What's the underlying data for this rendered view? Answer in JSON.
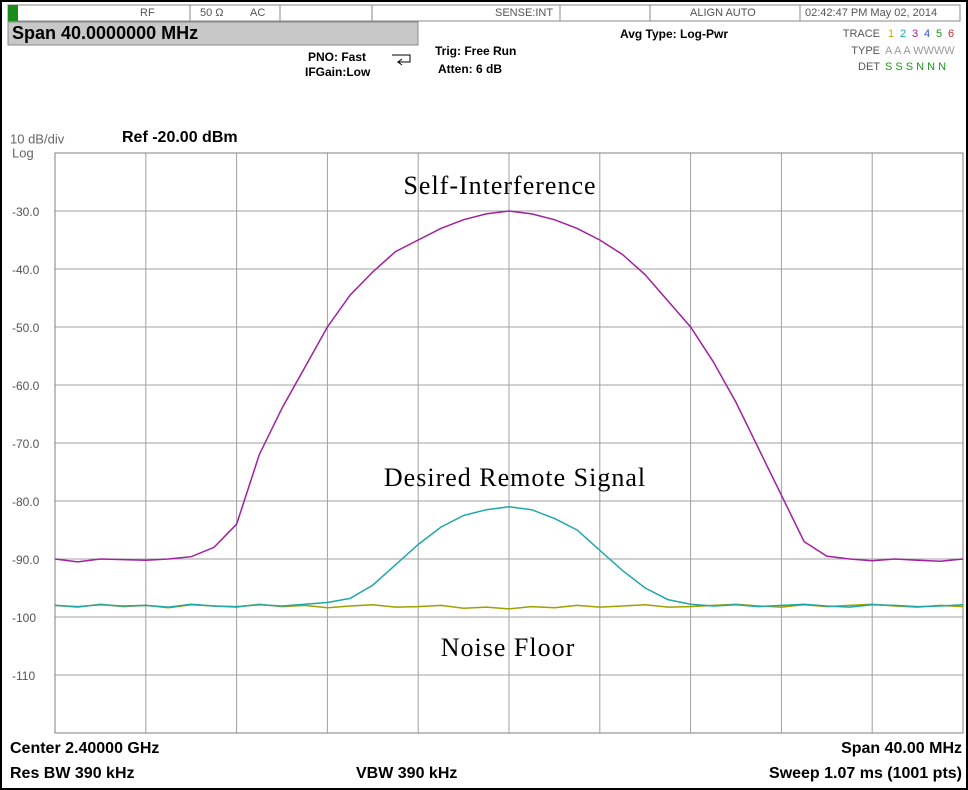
{
  "status": {
    "rf": "RF",
    "impedance": "50 Ω",
    "coupling": "AC",
    "sense": "SENSE:INT",
    "align": "ALIGN AUTO",
    "datetime": "02:42:47 PM May 02, 2014",
    "span": "Span 40.0000000 MHz",
    "pno": "PNO: Fast",
    "ifgain": "IFGain:Low",
    "trig": "Trig: Free Run",
    "atten": "Atten: 6 dB",
    "avg": "Avg Type: Log-Pwr",
    "trace_label": "TRACE",
    "trace_numbers": [
      "1",
      "2",
      "3",
      "4",
      "5",
      "6"
    ],
    "type_label": "TYPE",
    "type_value": "A A A WWWW",
    "det_label": "DET",
    "det_value": "S S S N N N"
  },
  "chart_data": {
    "type": "line",
    "scale_label": "10 dB/div",
    "ref_label": "Ref -20.00 dBm",
    "log_label": "Log",
    "annotations": [
      "Self-Interference",
      "Desired Remote Signal",
      "Noise Floor"
    ],
    "x": [
      2380,
      2381,
      2382,
      2383,
      2384,
      2385,
      2386,
      2387,
      2388,
      2389,
      2390,
      2391,
      2392,
      2393,
      2394,
      2395,
      2396,
      2397,
      2398,
      2399,
      2400,
      2401,
      2402,
      2403,
      2404,
      2405,
      2406,
      2407,
      2408,
      2409,
      2410,
      2411,
      2412,
      2413,
      2414,
      2415,
      2416,
      2417,
      2418,
      2419,
      2420
    ],
    "xlim": [
      2380,
      2420
    ],
    "ylim": [
      -120,
      -20
    ],
    "yticks": [
      {
        "value": -30,
        "label": "-30.0"
      },
      {
        "value": -40,
        "label": "-40.0"
      },
      {
        "value": -50,
        "label": "-50.0"
      },
      {
        "value": -60,
        "label": "-60.0"
      },
      {
        "value": -70,
        "label": "-70.0"
      },
      {
        "value": -80,
        "label": "-80.0"
      },
      {
        "value": -90,
        "label": "-90.0"
      },
      -100,
      -110
    ],
    "grid": true,
    "series": [
      {
        "color": "#a0a000",
        "values": [
          -98,
          -98.3,
          -97.8,
          -98.2,
          -98,
          -98.4,
          -97.9,
          -98.1,
          -98.3,
          -97.8,
          -98.2,
          -98,
          -98.4,
          -98.1,
          -97.9,
          -98.3,
          -98.2,
          -98,
          -98.5,
          -98.3,
          -98.6,
          -98.2,
          -98.4,
          -98,
          -98.3,
          -98.1,
          -97.9,
          -98.3,
          -98.2,
          -98,
          -97.8,
          -98.1,
          -98.3,
          -97.9,
          -98.2,
          -98,
          -97.8,
          -98.1,
          -98.3,
          -98,
          -98.2
        ]
      },
      {
        "color": "#20a8a8",
        "values": [
          -98,
          -98.2,
          -97.9,
          -98.1,
          -98,
          -98.3,
          -97.8,
          -98.1,
          -98.2,
          -97.9,
          -98.1,
          -97.8,
          -97.5,
          -96.8,
          -94.5,
          -91,
          -87.5,
          -84.5,
          -82.5,
          -81.5,
          -81,
          -81.5,
          -83,
          -85,
          -88.5,
          -92,
          -95,
          -97,
          -97.8,
          -98.1,
          -97.9,
          -98.2,
          -98,
          -97.8,
          -98.1,
          -98.3,
          -97.9,
          -98,
          -98.2,
          -98.1,
          -97.9
        ]
      },
      {
        "color": "#a020a0",
        "values": [
          -90,
          -90.5,
          -90,
          -90.1,
          -90.2,
          -90,
          -89.6,
          -88,
          -84,
          -72,
          -64,
          -57,
          -50,
          -44.5,
          -40.5,
          -37,
          -35,
          -33,
          -31.5,
          -30.5,
          -30,
          -30.5,
          -31.5,
          -33,
          -35,
          -37.5,
          -41,
          -45.5,
          -50,
          -56,
          -63,
          -71,
          -79,
          -87,
          -89.5,
          -90,
          -90.3,
          -90,
          -90.2,
          -90.4,
          -90
        ]
      }
    ]
  },
  "footer": {
    "center": "Center 2.40000 GHz",
    "span": "Span 40.00 MHz",
    "rbw": "Res BW 390 kHz",
    "vbw": "VBW 390 kHz",
    "sweep": "Sweep  1.07 ms (1001 pts)"
  }
}
